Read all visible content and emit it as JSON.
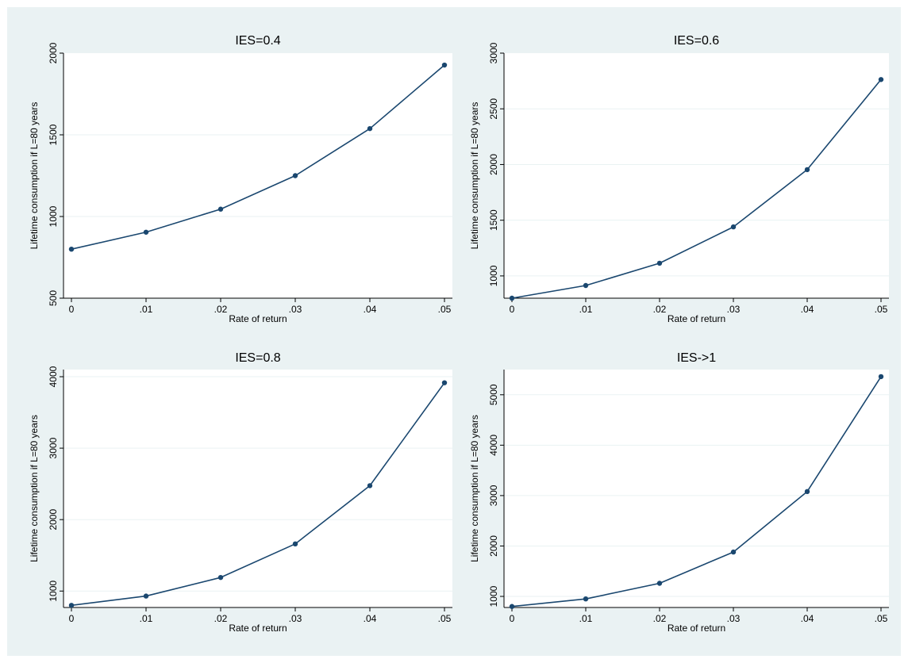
{
  "colors": {
    "series": "#1a476f",
    "outer_background": "#eaf2f3",
    "plot_background": "#ffffff",
    "grid": "#eaf2f3"
  },
  "chart_data": [
    {
      "type": "line",
      "title": "IES=0.4",
      "xlabel": "Rate of return",
      "ylabel": "Lifetime consumption if L=80 years",
      "x": [
        0,
        0.01,
        0.02,
        0.03,
        0.04,
        0.05
      ],
      "xticks": [
        "0",
        ".01",
        ".02",
        ".03",
        ".04",
        ".05"
      ],
      "xlim": [
        0,
        0.05
      ],
      "yticks": [
        500,
        1000,
        1500,
        2000
      ],
      "ylim": [
        500,
        2000
      ],
      "y": [
        800,
        904,
        1045,
        1250,
        1538,
        1927
      ],
      "grid": true,
      "legend": "none"
    },
    {
      "type": "line",
      "title": "IES=0.6",
      "xlabel": "Rate of return",
      "ylabel": "Lifetime consumption if L=80 years",
      "x": [
        0,
        0.01,
        0.02,
        0.03,
        0.04,
        0.05
      ],
      "xticks": [
        "0",
        ".01",
        ".02",
        ".03",
        ".04",
        ".05"
      ],
      "xlim": [
        0,
        0.05
      ],
      "yticks": [
        1000,
        1500,
        2000,
        2500,
        3000
      ],
      "ylim": [
        800,
        3000
      ],
      "y": [
        800,
        914,
        1114,
        1440,
        1954,
        2763
      ],
      "grid": true,
      "legend": "none"
    },
    {
      "type": "line",
      "title": "IES=0.8",
      "xlabel": "Rate of return",
      "ylabel": "Lifetime consumption if L=80 years",
      "x": [
        0,
        0.01,
        0.02,
        0.03,
        0.04,
        0.05
      ],
      "xticks": [
        "0",
        ".01",
        ".02",
        ".03",
        ".04",
        ".05"
      ],
      "xlim": [
        0,
        0.05
      ],
      "yticks": [
        1000,
        2000,
        3000,
        4000
      ],
      "ylim": [
        770,
        4100
      ],
      "y": [
        800,
        930,
        1190,
        1660,
        2475,
        3915
      ],
      "grid": true,
      "legend": "none"
    },
    {
      "type": "line",
      "title": "IES->1",
      "xlabel": "Rate of return",
      "ylabel": "Lifetime consumption if L=80 years",
      "x": [
        0,
        0.01,
        0.02,
        0.03,
        0.04,
        0.05
      ],
      "xticks": [
        "0",
        ".01",
        ".02",
        ".03",
        ".04",
        ".05"
      ],
      "xlim": [
        0,
        0.05
      ],
      "yticks": [
        1000,
        2000,
        3000,
        4000,
        5000
      ],
      "ylim": [
        780,
        5500
      ],
      "y": [
        800,
        950,
        1260,
        1880,
        3080,
        5360
      ],
      "grid": true,
      "legend": "none"
    }
  ]
}
